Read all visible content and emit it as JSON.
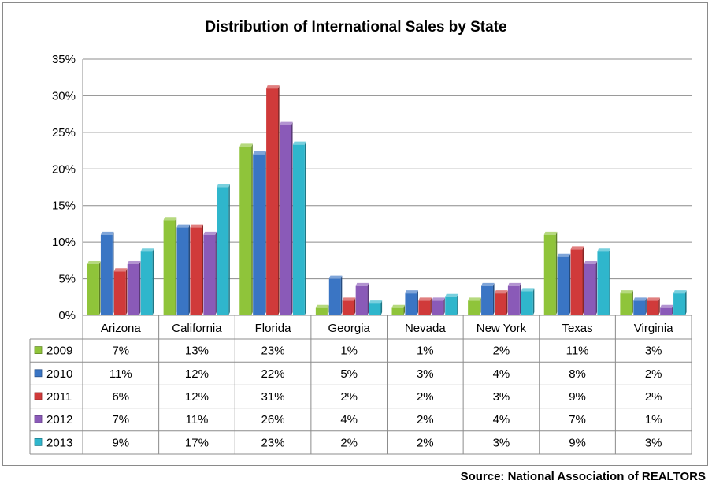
{
  "chart_data": {
    "type": "bar",
    "title": "Distribution of International Sales by State",
    "categories": [
      "Arizona",
      "California",
      "Florida",
      "Georgia",
      "Nevada",
      "New York",
      "Texas",
      "Virginia"
    ],
    "series": [
      {
        "name": "2009",
        "color": "#8fc43a",
        "values": [
          7,
          13,
          23,
          1,
          1,
          2,
          11,
          3
        ],
        "labels": [
          "7%",
          "13%",
          "23%",
          "1%",
          "1%",
          "2%",
          "11%",
          "3%"
        ]
      },
      {
        "name": "2010",
        "color": "#3a75c4",
        "values": [
          11,
          12,
          22,
          5,
          3,
          4,
          8,
          2
        ],
        "labels": [
          "11%",
          "12%",
          "22%",
          "5%",
          "3%",
          "4%",
          "8%",
          "2%"
        ]
      },
      {
        "name": "2011",
        "color": "#d03a3a",
        "values": [
          6,
          12,
          31,
          2,
          2,
          3,
          9,
          2
        ],
        "labels": [
          "6%",
          "12%",
          "31%",
          "2%",
          "2%",
          "3%",
          "9%",
          "2%"
        ]
      },
      {
        "name": "2012",
        "color": "#8a5ab8",
        "values": [
          7,
          11,
          26,
          4,
          2,
          4,
          7,
          1
        ],
        "labels": [
          "7%",
          "11%",
          "26%",
          "4%",
          "2%",
          "4%",
          "7%",
          "1%"
        ]
      },
      {
        "name": "2013",
        "color": "#2fb6cc",
        "values": [
          8.7,
          17.5,
          23.3,
          1.6,
          2.5,
          3.3,
          8.7,
          3.0
        ],
        "labels": [
          "9%",
          "17%",
          "23%",
          "2%",
          "2%",
          "3%",
          "9%",
          "3%"
        ]
      }
    ],
    "yticks": [
      "0%",
      "5%",
      "10%",
      "15%",
      "20%",
      "25%",
      "30%",
      "35%"
    ],
    "ylim": [
      0,
      35
    ],
    "grid": true,
    "legend": "data table"
  },
  "source": "Source: National Association of REALTORS"
}
